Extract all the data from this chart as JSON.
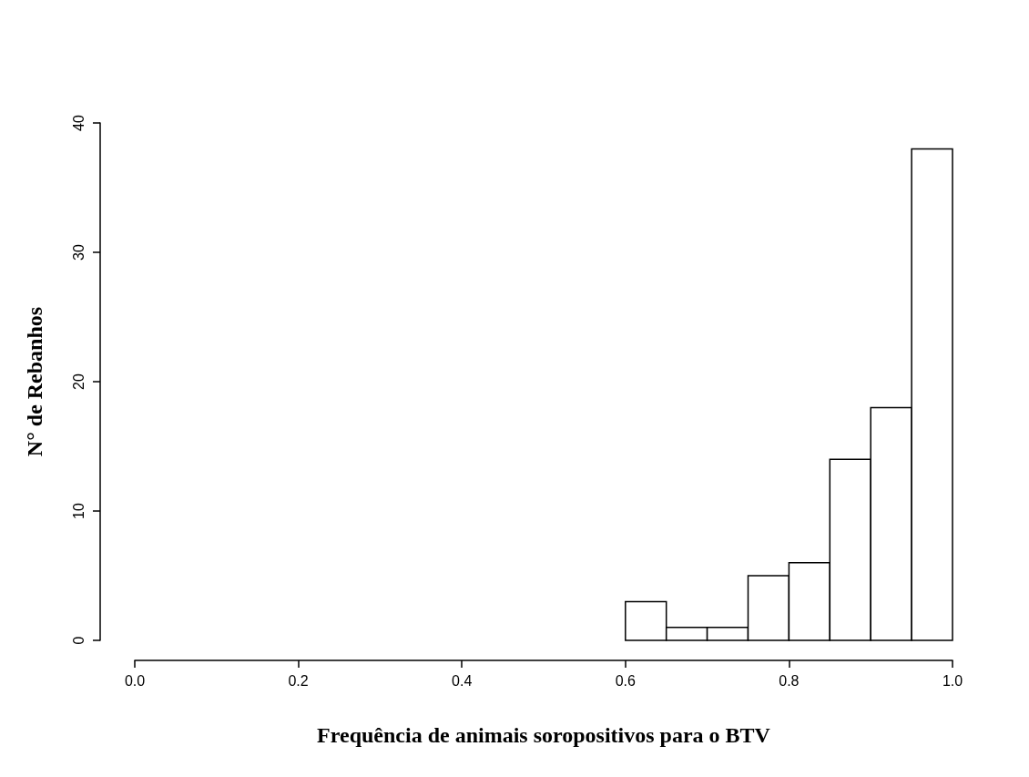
{
  "chart_data": {
    "type": "histogram",
    "xlabel": "Frequência de animais soropositivos para o BTV",
    "ylabel": "N° de Rebanhos",
    "bins": [
      0.6,
      0.65,
      0.7,
      0.75,
      0.8,
      0.85,
      0.9,
      0.95,
      1.0
    ],
    "values": [
      3,
      1,
      1,
      5,
      6,
      14,
      18,
      38
    ],
    "color": "#ffffff",
    "xlim": [
      0,
      1
    ],
    "xticks": [
      {
        "value": 0,
        "label": "0.0"
      },
      {
        "value": 0.2,
        "label": "0.2"
      },
      {
        "value": 0.4,
        "label": "0.4"
      },
      {
        "value": 0.6,
        "label": "0.6"
      },
      {
        "value": 0.8,
        "label": "0.8"
      },
      {
        "value": 1,
        "label": "1.0"
      }
    ],
    "ylim": [
      0,
      40
    ],
    "yticks": [
      0,
      10,
      20,
      30,
      40
    ],
    "grid": false
  }
}
